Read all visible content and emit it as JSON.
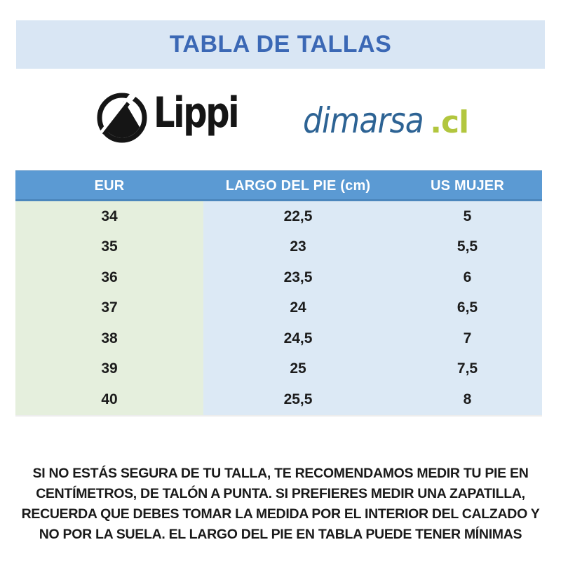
{
  "title": "TABLA DE TALLAS",
  "brands": {
    "lippi_wordmark": "Lippi",
    "dimarsa_name": "dimarsa",
    "dimarsa_tld": ".cl"
  },
  "table": {
    "headers": [
      "EUR",
      "LARGO DEL PIE (cm)",
      "US MUJER"
    ],
    "rows": [
      [
        "34",
        "22,5",
        "5"
      ],
      [
        "35",
        "23",
        "5,5"
      ],
      [
        "36",
        "23,5",
        "6"
      ],
      [
        "37",
        "24",
        "6,5"
      ],
      [
        "38",
        "24,5",
        "7"
      ],
      [
        "39",
        "25",
        "7,5"
      ],
      [
        "40",
        "25,5",
        "8"
      ]
    ]
  },
  "footer_lines": [
    "SI NO ESTÁS SEGURA DE TU TALLA, TE RECOMENDAMOS MEDIR TU PIE EN",
    "CENTÍMETROS, DE TALÓN A PUNTA. SI PREFIERES MEDIR UNA ZAPATILLA,",
    "RECUERDA QUE DEBES TOMAR LA MEDIDA POR EL INTERIOR DEL CALZADO Y",
    "NO POR LA SUELA. EL LARGO DEL PIE EN TABLA PUEDE TENER MÍNIMAS"
  ],
  "colors": {
    "title_bg": "#d9e6f4",
    "title_text": "#3b68b5",
    "header_bg": "#5b9ad3",
    "header_text": "#ffffff",
    "col_green": "#e5efdd",
    "col_blue": "#dce9f5",
    "cell_text": "#1c1c1c",
    "note_text": "#1a1a1a",
    "logo_black": "#151515",
    "dimarsa_blue": "#2d6394",
    "dimarsa_green": "#b2c63e"
  }
}
